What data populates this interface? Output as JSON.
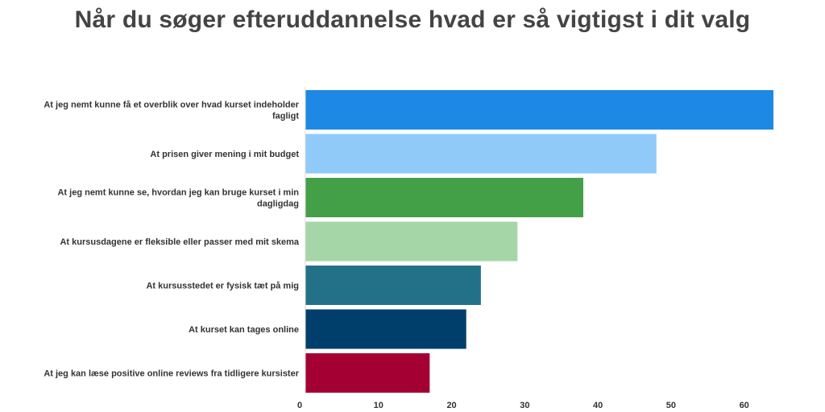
{
  "chart_data": {
    "type": "bar",
    "orientation": "horizontal",
    "title": "Når du søger efteruddannelse hvad er så vigtigst i dit valg",
    "categories": [
      "At jeg nemt kunne få et overblik over hvad kurset indeholder fagligt",
      "At prisen giver mening i mit budget",
      "At jeg nemt kunne se, hvordan jeg kan bruge kurset i min dagligdag",
      "At kursusdagene er fleksible eller passer med mit skema",
      "At kursusstedet er fysisk tæt på mig",
      "At kurset kan tages online",
      "At jeg kan læse positive online reviews fra tidligere kursister"
    ],
    "category_lines": [
      [
        "At jeg nemt kunne få et overblik over hvad kurset indeholder",
        "fagligt"
      ],
      [
        "At prisen giver mening i mit budget"
      ],
      [
        "At jeg nemt kunne se, hvordan jeg kan bruge kurset i min",
        "dagligdag"
      ],
      [
        "At kursusdagene er fleksible eller passer med mit skema"
      ],
      [
        "At kursusstedet er fysisk tæt på mig"
      ],
      [
        "At kurset kan tages online"
      ],
      [
        "At jeg kan læse positive online reviews fra tidligere kursister"
      ]
    ],
    "values": [
      64,
      48,
      38,
      29,
      24,
      22,
      17
    ],
    "colors": [
      "#1e88e5",
      "#90caf9",
      "#43a047",
      "#a5d6a7",
      "#237189",
      "#003f6b",
      "#a50034"
    ],
    "xlim": [
      0,
      64
    ],
    "xticks": [
      0,
      10,
      20,
      30,
      40,
      50,
      60
    ],
    "xlabel": "",
    "ylabel": "",
    "grid": false,
    "legend": "none"
  }
}
